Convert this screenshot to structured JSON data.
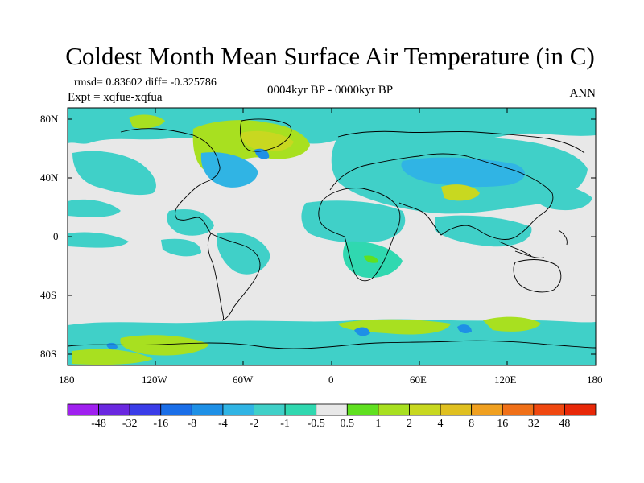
{
  "title": "Coldest Month Mean Surface Air Temperature (in C)",
  "stats": "rmsd= 0.83602 diff= -0.325786",
  "expt": "Expt = xqfue-xqfua",
  "period": "0004kyr BP - 0000kyr BP",
  "season": "ANN",
  "lat_ticks": [
    "80N",
    "40N",
    "0",
    "40S",
    "80S"
  ],
  "lon_ticks": [
    "180",
    "120W",
    "60W",
    "0",
    "60E",
    "120E",
    "180"
  ],
  "colorbar": {
    "labels": [
      "-48",
      "-32",
      "-16",
      "-8",
      "-4",
      "-2",
      "-1",
      "-0.5",
      "0.5",
      "1",
      "2",
      "4",
      "8",
      "16",
      "32",
      "48"
    ],
    "colors": [
      "#a020f0",
      "#6a28e0",
      "#3a3ce8",
      "#1a6ee8",
      "#1e90e6",
      "#30b4e4",
      "#40d0c8",
      "#30d8b0",
      "#e8e8e8",
      "#60e020",
      "#a8e020",
      "#c8d820",
      "#e0c020",
      "#f0a020",
      "#f07018",
      "#f04810",
      "#e82808"
    ]
  },
  "colors": {
    "land_neutral": "#e8e8e8",
    "cool_light": "#30d8b0",
    "cool_mid": "#40d0c8",
    "cool": "#30b4e4",
    "cold": "#1e90e6",
    "warm_light": "#60e020",
    "warm": "#a8e020",
    "warmer": "#c8d820"
  }
}
